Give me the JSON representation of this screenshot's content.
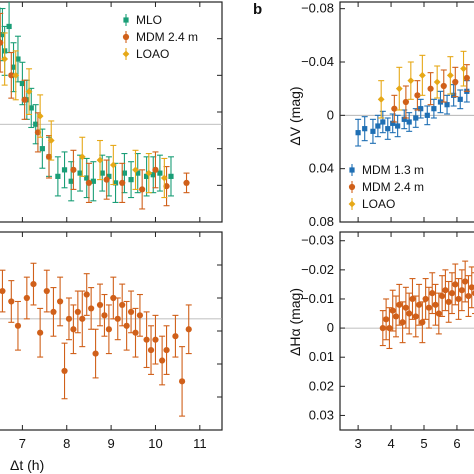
{
  "chart_data": [
    {
      "panel": "",
      "type": "scatter",
      "ylabel": "",
      "yinvert": true,
      "zero_line": true,
      "legend": {
        "placement": "top-right",
        "entries": [
          "MLO",
          "MDM 2.4 m",
          "LOAO"
        ]
      },
      "series": [
        {
          "name": "MLO",
          "color": "#1a9e77",
          "points": [
            [
              6.45,
              -0.07,
              0.018
            ],
            [
              6.55,
              -0.055,
              0.016
            ],
            [
              6.6,
              -0.045,
              0.015
            ],
            [
              6.7,
              -0.06,
              0.016
            ],
            [
              6.8,
              -0.035,
              0.015
            ],
            [
              6.9,
              -0.04,
              0.014
            ],
            [
              7.0,
              -0.025,
              0.013
            ],
            [
              7.1,
              -0.015,
              0.012
            ],
            [
              7.2,
              -0.01,
              0.012
            ],
            [
              7.3,
              0.0,
              0.012
            ],
            [
              7.45,
              0.015,
              0.012
            ],
            [
              7.6,
              0.02,
              0.012
            ],
            [
              7.8,
              0.032,
              0.012
            ],
            [
              7.95,
              0.028,
              0.011
            ],
            [
              8.1,
              0.035,
              0.012
            ],
            [
              8.3,
              0.03,
              0.011
            ],
            [
              8.45,
              0.033,
              0.012
            ],
            [
              8.6,
              0.035,
              0.012
            ],
            [
              8.8,
              0.03,
              0.011
            ],
            [
              8.95,
              0.032,
              0.012
            ],
            [
              9.1,
              0.036,
              0.012
            ],
            [
              9.3,
              0.03,
              0.012
            ],
            [
              9.45,
              0.034,
              0.011
            ],
            [
              9.6,
              0.03,
              0.012
            ],
            [
              9.8,
              0.032,
              0.012
            ],
            [
              9.95,
              0.031,
              0.011
            ],
            [
              10.1,
              0.03,
              0.011
            ],
            [
              10.35,
              0.032,
              0.012
            ]
          ]
        },
        {
          "name": "MDM 2.4 m",
          "color": "#d0601a",
          "points": [
            [
              6.5,
              -0.05,
              0.018
            ],
            [
              6.75,
              -0.03,
              0.014
            ],
            [
              7.05,
              -0.015,
              0.012
            ],
            [
              7.35,
              0.005,
              0.012
            ],
            [
              7.6,
              0.02,
              0.013
            ],
            [
              8.15,
              0.028,
              0.012
            ],
            [
              8.5,
              0.036,
              0.012
            ],
            [
              8.9,
              0.034,
              0.012
            ],
            [
              9.25,
              0.036,
              0.012
            ],
            [
              9.7,
              0.04,
              0.012
            ],
            [
              10.0,
              0.028,
              0.011
            ],
            [
              10.25,
              0.038,
              0.012
            ],
            [
              10.7,
              0.036,
              0.006
            ]
          ]
        },
        {
          "name": "LOAO",
          "color": "#e6a817",
          "points": [
            [
              6.6,
              -0.04,
              0.016
            ],
            [
              6.85,
              -0.03,
              0.015
            ],
            [
              7.15,
              -0.02,
              0.014
            ],
            [
              7.4,
              -0.005,
              0.013
            ],
            [
              7.65,
              0.01,
              0.012
            ],
            [
              8.35,
              0.02,
              0.012
            ],
            [
              8.75,
              0.022,
              0.012
            ],
            [
              9.05,
              0.025,
              0.012
            ],
            [
              9.55,
              0.028,
              0.012
            ],
            [
              9.85,
              0.03,
              0.012
            ],
            [
              10.2,
              0.033,
              0.012
            ]
          ]
        }
      ]
    },
    {
      "panel": "",
      "type": "scatter",
      "xlabel": "Δt (h)",
      "xlim": [
        6.45,
        11.5
      ],
      "xticks": [
        7,
        8,
        9,
        10,
        11
      ],
      "ylabel": "",
      "yinvert": true,
      "zero_line": true,
      "series": [
        {
          "name": "MDM 2.4 m",
          "color": "#d0601a",
          "points": [
            [
              6.55,
              -0.008,
              0.006
            ],
            [
              6.75,
              -0.005,
              0.006
            ],
            [
              6.9,
              0.002,
              0.007
            ],
            [
              7.1,
              -0.006,
              0.006
            ],
            [
              7.25,
              -0.01,
              0.006
            ],
            [
              7.4,
              0.004,
              0.007
            ],
            [
              7.55,
              -0.008,
              0.006
            ],
            [
              7.7,
              -0.002,
              0.007
            ],
            [
              7.85,
              -0.005,
              0.007
            ],
            [
              7.95,
              0.015,
              0.008
            ],
            [
              8.05,
              0.0,
              0.006
            ],
            [
              8.15,
              0.003,
              0.007
            ],
            [
              8.25,
              -0.002,
              0.006
            ],
            [
              8.35,
              0.0,
              0.008
            ],
            [
              8.45,
              -0.007,
              0.006
            ],
            [
              8.55,
              -0.003,
              0.006
            ],
            [
              8.65,
              0.01,
              0.007
            ],
            [
              8.75,
              -0.004,
              0.006
            ],
            [
              8.85,
              -0.001,
              0.006
            ],
            [
              8.95,
              0.003,
              0.007
            ],
            [
              9.05,
              -0.006,
              0.006
            ],
            [
              9.15,
              0.0,
              0.006
            ],
            [
              9.25,
              -0.004,
              0.006
            ],
            [
              9.35,
              0.002,
              0.007
            ],
            [
              9.45,
              -0.002,
              0.006
            ],
            [
              9.55,
              0.004,
              0.007
            ],
            [
              9.65,
              -0.001,
              0.006
            ],
            [
              9.8,
              0.006,
              0.008
            ],
            [
              9.9,
              0.009,
              0.007
            ],
            [
              10.0,
              0.006,
              0.007
            ],
            [
              10.15,
              0.012,
              0.007
            ],
            [
              10.25,
              0.009,
              0.007
            ],
            [
              10.45,
              0.005,
              0.006
            ],
            [
              10.6,
              0.018,
              0.01
            ],
            [
              10.75,
              0.003,
              0.007
            ]
          ]
        }
      ]
    },
    {
      "panel": "b",
      "type": "scatter",
      "ylabel": "ΔV (mag)",
      "ylim": [
        -0.085,
        0.08
      ],
      "yinvert": true,
      "yticks": [
        "−0.08",
        "−0.04",
        "0",
        "0.04",
        "0.08"
      ],
      "ytick_values": [
        -0.08,
        -0.04,
        0,
        0.04,
        0.08
      ],
      "zero_line": true,
      "legend": {
        "placement": "bottom-left",
        "entries": [
          "MDM 1.3 m",
          "MDM 2.4 m",
          "LOAO"
        ]
      },
      "series": [
        {
          "name": "MDM 1.3 m",
          "color": "#1f6fb4",
          "points": [
            [
              3.0,
              0.013,
              0.01
            ],
            [
              3.2,
              0.01,
              0.009
            ],
            [
              3.45,
              0.012,
              0.009
            ],
            [
              3.6,
              0.008,
              0.008
            ],
            [
              3.75,
              0.005,
              0.008
            ],
            [
              3.9,
              0.01,
              0.008
            ],
            [
              4.05,
              0.006,
              0.007
            ],
            [
              4.2,
              0.008,
              0.008
            ],
            [
              4.4,
              0.003,
              0.007
            ],
            [
              4.55,
              0.005,
              0.007
            ],
            [
              4.75,
              0.002,
              0.007
            ],
            [
              4.9,
              -0.005,
              0.007
            ],
            [
              5.1,
              0.0,
              0.007
            ],
            [
              5.3,
              -0.005,
              0.007
            ],
            [
              5.5,
              -0.01,
              0.008
            ],
            [
              5.7,
              -0.008,
              0.007
            ],
            [
              5.9,
              -0.015,
              0.008
            ],
            [
              6.1,
              -0.012,
              0.007
            ],
            [
              6.3,
              -0.018,
              0.008
            ]
          ]
        },
        {
          "name": "MDM 2.4 m",
          "color": "#d0601a",
          "points": [
            [
              4.1,
              -0.005,
              0.01
            ],
            [
              4.45,
              -0.01,
              0.012
            ],
            [
              4.8,
              -0.015,
              0.011
            ],
            [
              5.2,
              -0.02,
              0.012
            ],
            [
              5.6,
              -0.022,
              0.012
            ],
            [
              5.95,
              -0.025,
              0.011
            ],
            [
              6.3,
              -0.028,
              0.01
            ]
          ]
        },
        {
          "name": "LOAO",
          "color": "#e6a817",
          "points": [
            [
              3.7,
              -0.012,
              0.014
            ],
            [
              4.25,
              -0.02,
              0.016
            ],
            [
              4.6,
              -0.026,
              0.014
            ],
            [
              4.95,
              -0.03,
              0.015
            ],
            [
              5.4,
              -0.025,
              0.012
            ],
            [
              5.8,
              -0.03,
              0.014
            ],
            [
              6.2,
              -0.035,
              0.013
            ]
          ]
        }
      ]
    },
    {
      "panel": "",
      "type": "scatter",
      "ylabel": "ΔHα (mag)",
      "ylim": [
        -0.033,
        0.035
      ],
      "yinvert": true,
      "yticks": [
        "−0.03",
        "−0.02",
        "−0.01",
        "0",
        "0.01",
        "0.02",
        "0.03"
      ],
      "ytick_values": [
        -0.03,
        -0.02,
        -0.01,
        0,
        0.01,
        0.02,
        0.03
      ],
      "xlim": [
        2.45,
        6.7
      ],
      "xticks": [
        3,
        4,
        5,
        6
      ],
      "zero_line": true,
      "series": [
        {
          "name": "MDM 2.4 m",
          "color": "#d0601a",
          "points": [
            [
              3.75,
              0.0,
              0.006
            ],
            [
              3.85,
              -0.003,
              0.007
            ],
            [
              3.95,
              0.0,
              0.007
            ],
            [
              4.05,
              -0.006,
              0.007
            ],
            [
              4.15,
              -0.004,
              0.007
            ],
            [
              4.25,
              -0.008,
              0.007
            ],
            [
              4.35,
              -0.002,
              0.007
            ],
            [
              4.45,
              -0.007,
              0.007
            ],
            [
              4.55,
              -0.005,
              0.007
            ],
            [
              4.65,
              -0.01,
              0.007
            ],
            [
              4.75,
              -0.004,
              0.007
            ],
            [
              4.85,
              -0.008,
              0.007
            ],
            [
              4.95,
              -0.002,
              0.007
            ],
            [
              5.05,
              -0.01,
              0.007
            ],
            [
              5.15,
              -0.007,
              0.007
            ],
            [
              5.25,
              -0.012,
              0.007
            ],
            [
              5.35,
              -0.008,
              0.007
            ],
            [
              5.45,
              -0.005,
              0.007
            ],
            [
              5.55,
              -0.011,
              0.007
            ],
            [
              5.65,
              -0.013,
              0.007
            ],
            [
              5.75,
              -0.009,
              0.007
            ],
            [
              5.85,
              -0.012,
              0.007
            ],
            [
              5.95,
              -0.015,
              0.007
            ],
            [
              6.05,
              -0.01,
              0.007
            ],
            [
              6.15,
              -0.013,
              0.007
            ],
            [
              6.25,
              -0.016,
              0.007
            ],
            [
              6.35,
              -0.011,
              0.007
            ],
            [
              6.45,
              -0.014,
              0.007
            ],
            [
              6.55,
              -0.012,
              0.007
            ]
          ]
        }
      ]
    }
  ]
}
